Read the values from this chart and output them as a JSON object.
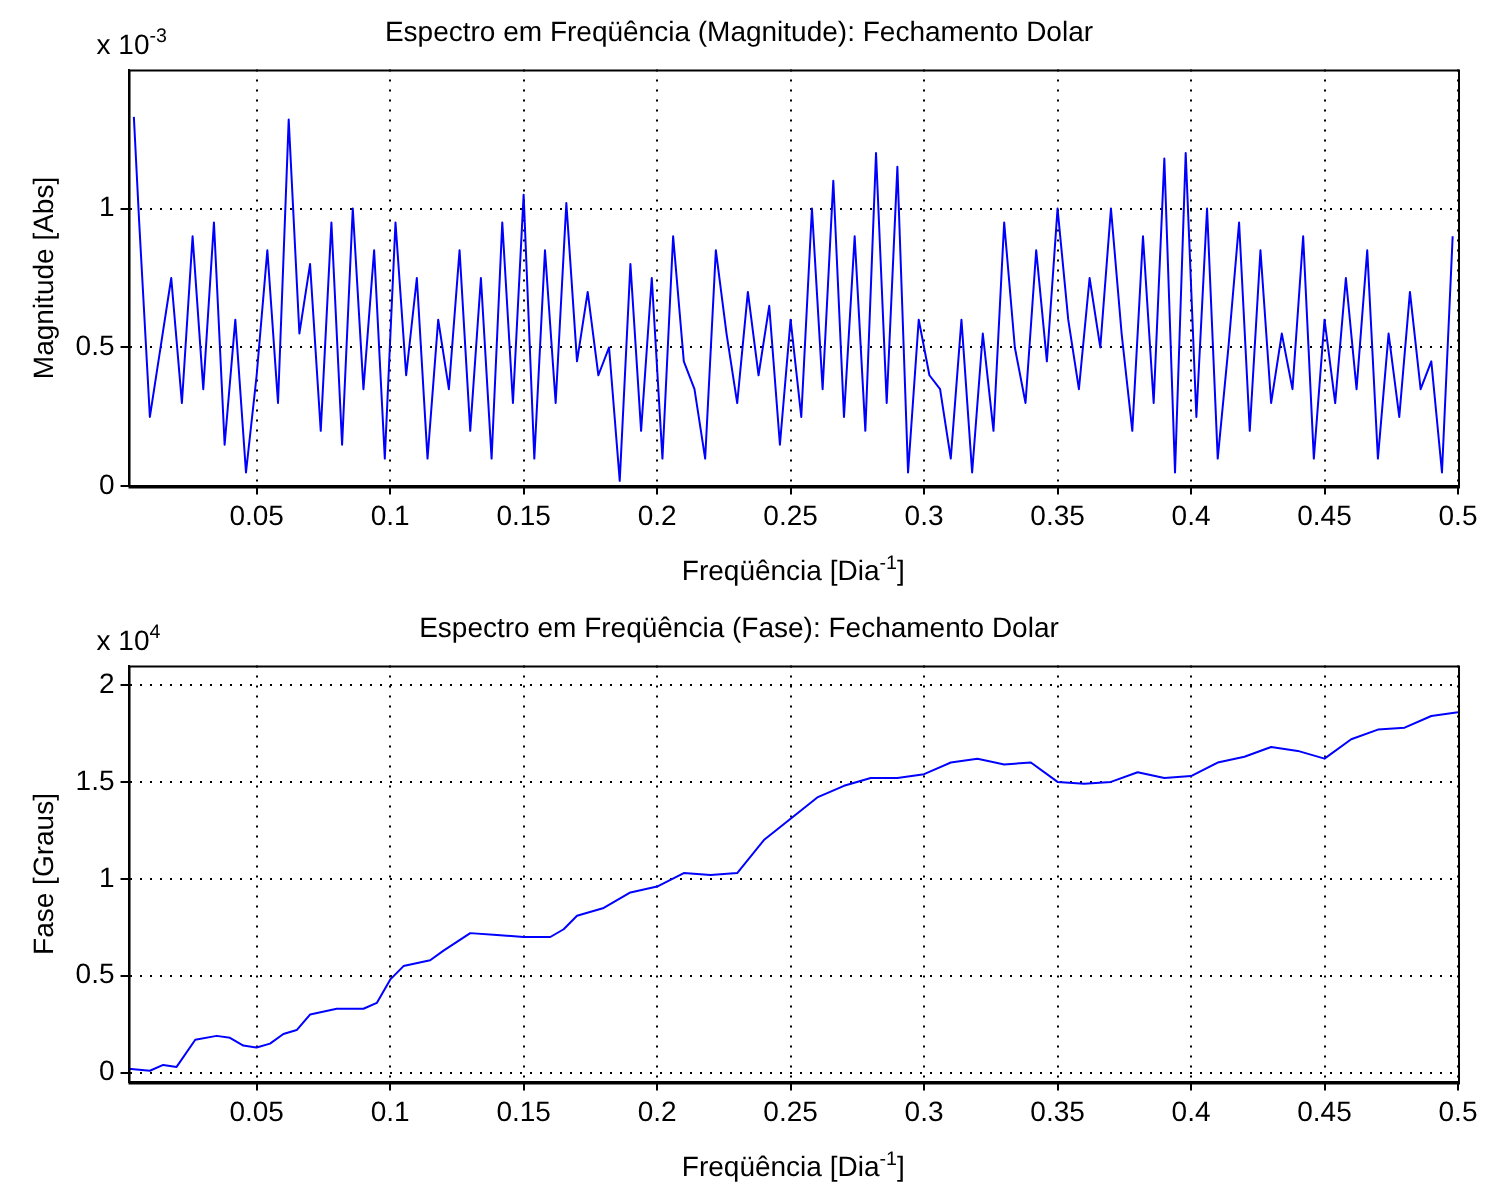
{
  "chart_data": [
    {
      "type": "line",
      "title": "Espectro em Freqüência (Magnitude): Fechamento Dolar",
      "xlabel": "Freqüência [Dia$^{-1}$]",
      "ylabel": "Magnitude [Abs]",
      "annotations": [
        "x 10$^{-3}$"
      ],
      "grid": true,
      "legend": false,
      "marker": "none",
      "xlim": [
        0.002,
        0.5
      ],
      "xticks": [
        0.05,
        0.1,
        0.15,
        0.2,
        0.25,
        0.3,
        0.35,
        0.4,
        0.45,
        0.5
      ],
      "ylim": [
        0,
        1.5
      ],
      "yticks": [
        0,
        0.5,
        1
      ],
      "x": [
        0.004,
        0.006,
        0.01,
        0.014,
        0.018,
        0.022,
        0.026,
        0.03,
        0.034,
        0.038,
        0.042,
        0.046,
        0.05,
        0.054,
        0.058,
        0.062,
        0.066,
        0.07,
        0.074,
        0.078,
        0.082,
        0.086,
        0.09,
        0.094,
        0.098,
        0.102,
        0.106,
        0.11,
        0.114,
        0.118,
        0.122,
        0.126,
        0.13,
        0.134,
        0.138,
        0.142,
        0.146,
        0.15,
        0.154,
        0.158,
        0.162,
        0.166,
        0.17,
        0.174,
        0.178,
        0.182,
        0.186,
        0.19,
        0.194,
        0.198,
        0.202,
        0.206,
        0.21,
        0.214,
        0.218,
        0.222,
        0.226,
        0.23,
        0.234,
        0.238,
        0.242,
        0.246,
        0.25,
        0.254,
        0.258,
        0.262,
        0.266,
        0.27,
        0.274,
        0.278,
        0.282,
        0.286,
        0.29,
        0.294,
        0.298,
        0.302,
        0.306,
        0.31,
        0.314,
        0.318,
        0.322,
        0.326,
        0.33,
        0.334,
        0.338,
        0.342,
        0.346,
        0.35,
        0.354,
        0.358,
        0.362,
        0.366,
        0.37,
        0.374,
        0.378,
        0.382,
        0.386,
        0.39,
        0.394,
        0.398,
        0.402,
        0.406,
        0.41,
        0.414,
        0.418,
        0.422,
        0.426,
        0.43,
        0.434,
        0.438,
        0.442,
        0.446,
        0.45,
        0.454,
        0.458,
        0.462,
        0.466,
        0.47,
        0.474,
        0.478,
        0.482,
        0.486,
        0.49,
        0.494,
        0.498
      ],
      "series": [
        {
          "color": "#0000ff",
          "values": [
            1.33,
            0.95,
            0.25,
            0.5,
            0.75,
            0.3,
            0.9,
            0.35,
            0.95,
            0.15,
            0.6,
            0.05,
            0.4,
            0.85,
            0.3,
            1.32,
            0.55,
            0.8,
            0.2,
            0.95,
            0.15,
            1.0,
            0.35,
            0.85,
            0.1,
            0.95,
            0.4,
            0.75,
            0.1,
            0.6,
            0.35,
            0.85,
            0.2,
            0.75,
            0.1,
            0.95,
            0.3,
            1.05,
            0.1,
            0.85,
            0.3,
            1.02,
            0.45,
            0.7,
            0.4,
            0.5,
            0.02,
            0.8,
            0.2,
            0.75,
            0.1,
            0.9,
            0.45,
            0.35,
            0.1,
            0.85,
            0.55,
            0.3,
            0.7,
            0.4,
            0.65,
            0.15,
            0.6,
            0.25,
            1.0,
            0.35,
            1.1,
            0.25,
            0.9,
            0.2,
            1.2,
            0.3,
            1.15,
            0.05,
            0.6,
            0.4,
            0.35,
            0.1,
            0.6,
            0.05,
            0.55,
            0.2,
            0.95,
            0.5,
            0.3,
            0.85,
            0.45,
            1.0,
            0.6,
            0.35,
            0.75,
            0.5,
            1.0,
            0.55,
            0.2,
            0.9,
            0.3,
            1.18,
            0.05,
            1.2,
            0.25,
            1.0,
            0.1,
            0.5,
            0.95,
            0.2,
            0.85,
            0.3,
            0.55,
            0.35,
            0.9,
            0.1,
            0.6,
            0.3,
            0.75,
            0.35,
            0.85,
            0.1,
            0.55,
            0.25,
            0.7,
            0.35,
            0.45,
            0.05,
            0.9
          ]
        }
      ]
    },
    {
      "type": "line",
      "title": "Espectro em Freqüência (Fase): Fechamento Dolar",
      "xlabel": "Freqüência [Dia$^{-1}$]",
      "ylabel": "Fase [Graus]",
      "annotations": [
        "x 10$^{4}$"
      ],
      "grid": true,
      "legend": false,
      "marker": "none",
      "xlim": [
        0.002,
        0.5
      ],
      "xticks": [
        0.05,
        0.1,
        0.15,
        0.2,
        0.25,
        0.3,
        0.35,
        0.4,
        0.45,
        0.5
      ],
      "ylim": [
        -0.05,
        2.1
      ],
      "yticks": [
        0,
        0.5,
        1,
        1.5,
        2
      ],
      "x": [
        0.002,
        0.01,
        0.015,
        0.02,
        0.027,
        0.035,
        0.04,
        0.045,
        0.05,
        0.055,
        0.06,
        0.065,
        0.07,
        0.08,
        0.09,
        0.095,
        0.1,
        0.105,
        0.115,
        0.12,
        0.13,
        0.14,
        0.15,
        0.155,
        0.16,
        0.165,
        0.17,
        0.18,
        0.19,
        0.2,
        0.21,
        0.22,
        0.23,
        0.24,
        0.25,
        0.26,
        0.27,
        0.28,
        0.29,
        0.3,
        0.31,
        0.32,
        0.33,
        0.34,
        0.35,
        0.36,
        0.37,
        0.38,
        0.39,
        0.4,
        0.41,
        0.42,
        0.43,
        0.44,
        0.45,
        0.46,
        0.47,
        0.48,
        0.49,
        0.5
      ],
      "series": [
        {
          "color": "#0000ff",
          "values": [
            0.02,
            0.01,
            0.04,
            0.03,
            0.17,
            0.19,
            0.18,
            0.14,
            0.13,
            0.15,
            0.2,
            0.22,
            0.3,
            0.33,
            0.33,
            0.36,
            0.48,
            0.55,
            0.58,
            0.63,
            0.72,
            0.71,
            0.7,
            0.7,
            0.7,
            0.74,
            0.81,
            0.85,
            0.93,
            0.96,
            1.03,
            1.02,
            1.03,
            1.2,
            1.31,
            1.42,
            1.48,
            1.52,
            1.52,
            1.54,
            1.6,
            1.62,
            1.59,
            1.6,
            1.5,
            1.49,
            1.5,
            1.55,
            1.52,
            1.53,
            1.6,
            1.63,
            1.68,
            1.66,
            1.62,
            1.72,
            1.77,
            1.78,
            1.84,
            1.86
          ]
        }
      ]
    }
  ]
}
